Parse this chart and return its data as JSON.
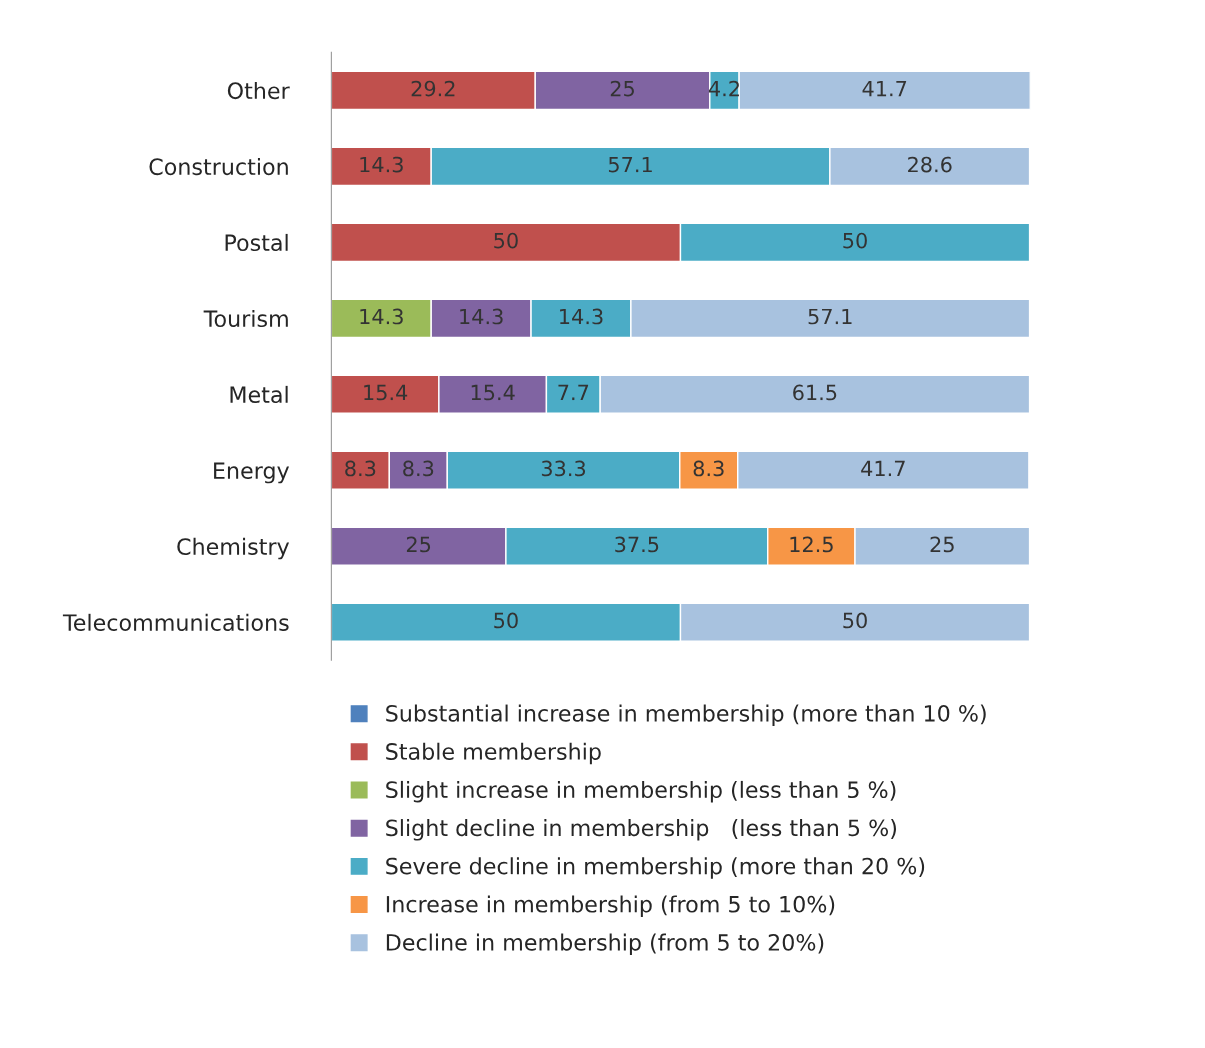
{
  "chart_data": {
    "type": "bar",
    "orientation": "horizontal",
    "stacked": true,
    "data_labels": true,
    "legend": "bottom",
    "grid": false,
    "categories": [
      "Other",
      "Construction",
      "Postal",
      "Tourism",
      "Metal",
      "Energy",
      "Chemistry",
      "Telecommunications"
    ],
    "series": [
      {
        "name": "Substantial increase in membership (more than 10 %)",
        "color": "#4f81bd",
        "values": [
          null,
          null,
          null,
          null,
          null,
          null,
          null,
          null
        ]
      },
      {
        "name": "Stable membership",
        "color": "#c0504d",
        "values": [
          29.2,
          14.3,
          50,
          null,
          15.4,
          8.3,
          null,
          null
        ]
      },
      {
        "name": "Slight increase in membership (less than 5 %)",
        "color": "#9bbb59",
        "values": [
          null,
          null,
          null,
          14.3,
          null,
          null,
          null,
          null
        ]
      },
      {
        "name": "Slight decline in membership   (less than 5 %)",
        "color": "#8064a2",
        "values": [
          25,
          null,
          null,
          14.3,
          15.4,
          8.3,
          25,
          null
        ]
      },
      {
        "name": "Severe decline in membership (more than 20 %)",
        "color": "#4bacc6",
        "values": [
          4.2,
          57.1,
          50,
          14.3,
          7.7,
          33.3,
          37.5,
          50
        ]
      },
      {
        "name": "Increase in membership (from 5 to 10%)",
        "color": "#f79646",
        "values": [
          null,
          null,
          null,
          null,
          null,
          8.3,
          12.5,
          null
        ]
      },
      {
        "name": "Decline in membership (from 5 to 20%)",
        "color": "#a8c2df",
        "values": [
          41.7,
          28.6,
          null,
          57.1,
          61.5,
          41.7,
          25,
          50
        ]
      }
    ]
  }
}
